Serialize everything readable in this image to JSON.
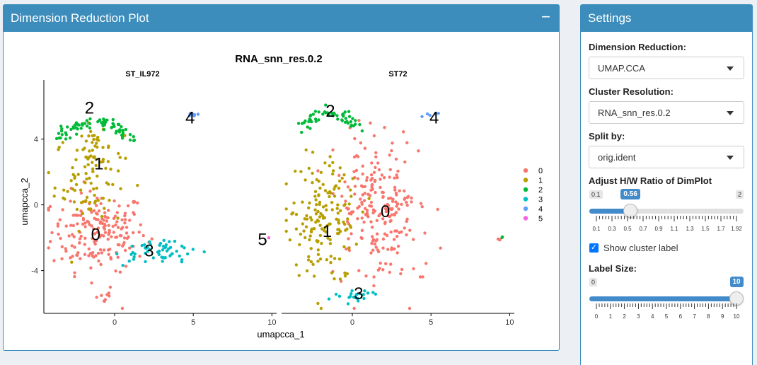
{
  "main_panel": {
    "title": "Dimension Reduction Plot",
    "collapse_icon": "minus-icon"
  },
  "settings_panel": {
    "title": "Settings",
    "dimension_reduction": {
      "label": "Dimension Reduction:",
      "value": "UMAP.CCA"
    },
    "cluster_resolution": {
      "label": "Cluster Resolution:",
      "value": "RNA_snn_res.0.2"
    },
    "split_by": {
      "label": "Split by:",
      "value": "orig.ident"
    },
    "hw_ratio": {
      "label": "Adjust H/W Ratio of DimPlot",
      "min": 0.1,
      "max": 2,
      "value": 0.56,
      "min_label": "0.1",
      "max_label": "2",
      "value_label": "0.56",
      "tick_labels": [
        "0.1",
        "0.3",
        "0.5",
        "0.7",
        "0.9",
        "1.1",
        "1.3",
        "1.5",
        "1.7",
        "1.92"
      ]
    },
    "show_cluster_label": {
      "label": "Show cluster label",
      "checked": true
    },
    "label_size": {
      "label": "Label Size:",
      "min": 0,
      "max": 10,
      "value": 10,
      "min_label": "0",
      "max_label": "10",
      "value_label": "10",
      "tick_labels": [
        "0",
        "1",
        "2",
        "3",
        "4",
        "5",
        "6",
        "7",
        "8",
        "9",
        "10"
      ]
    }
  },
  "chart_data": {
    "type": "scatter",
    "title": "RNA_snn_res.0.2",
    "xlabel": "umapcca_1",
    "ylabel": "umapcca_2",
    "xlim": [
      -4.5,
      10.3
    ],
    "ylim": [
      -6.6,
      7.6
    ],
    "x_ticks": [
      0,
      5,
      10
    ],
    "y_ticks": [
      -4,
      0,
      4
    ],
    "legend_position": "right",
    "legend": [
      {
        "label": "0",
        "color": "#F8766D"
      },
      {
        "label": "1",
        "color": "#B79F00"
      },
      {
        "label": "2",
        "color": "#00BA38"
      },
      {
        "label": "3",
        "color": "#00BFC4"
      },
      {
        "label": "4",
        "color": "#619CFF"
      },
      {
        "label": "5",
        "color": "#F564E3"
      }
    ],
    "panels": [
      {
        "name": "ST_IL972",
        "clusters": [
          {
            "cluster": "0",
            "color": "#F8766D",
            "n": 190,
            "shape": "blob",
            "cx": -1.0,
            "cy": -1.6,
            "sx": 1.5,
            "sy": 1.2
          },
          {
            "cluster": "0",
            "color": "#F8766D",
            "n": 10,
            "shape": "blob",
            "cx": -0.6,
            "cy": -5.7,
            "sx": 0.4,
            "sy": 0.3
          },
          {
            "cluster": "1",
            "color": "#B79F00",
            "n": 80,
            "shape": "blob",
            "cx": -1.6,
            "cy": 1.6,
            "sx": 1.1,
            "sy": 1.5
          },
          {
            "cluster": "1",
            "color": "#B79F00",
            "n": 25,
            "shape": "blob",
            "cx": -1.2,
            "cy": 3.5,
            "sx": 0.5,
            "sy": 0.5
          },
          {
            "cluster": "2",
            "color": "#00BA38",
            "n": 75,
            "shape": "arc",
            "cx": -1.3,
            "cy": 3.6,
            "r": 2.3,
            "sy": 1.4
          },
          {
            "cluster": "3",
            "color": "#00BFC4",
            "n": 55,
            "shape": "blob",
            "cx": 2.7,
            "cy": -2.8,
            "sx": 1.2,
            "sy": 0.35
          },
          {
            "cluster": "4",
            "color": "#619CFF",
            "n": 7,
            "shape": "blob",
            "cx": 5.0,
            "cy": 5.5,
            "sx": 0.3,
            "sy": 0.08
          },
          {
            "cluster": "5",
            "color": "#F564E3",
            "n": 1,
            "shape": "blob",
            "cx": 9.8,
            "cy": -2.0,
            "sx": 0,
            "sy": 0
          }
        ],
        "labels": [
          {
            "text": "0",
            "x": -1.2,
            "y": -1.8
          },
          {
            "text": "1",
            "x": -1.0,
            "y": 2.5
          },
          {
            "text": "2",
            "x": -1.6,
            "y": 5.9
          },
          {
            "text": "3",
            "x": 2.2,
            "y": -2.8
          },
          {
            "text": "4",
            "x": 4.8,
            "y": 5.3
          },
          {
            "text": "5",
            "x": 9.4,
            "y": -2.1
          }
        ]
      },
      {
        "name": "ST72",
        "clusters": [
          {
            "cluster": "0",
            "color": "#F8766D",
            "n": 230,
            "shape": "blob",
            "cx": 1.7,
            "cy": -0.4,
            "sx": 1.4,
            "sy": 2.0
          },
          {
            "cluster": "1",
            "color": "#B79F00",
            "n": 160,
            "shape": "blob",
            "cx": -1.8,
            "cy": -0.9,
            "sx": 1.2,
            "sy": 1.8
          },
          {
            "cluster": "2",
            "color": "#00BA38",
            "n": 55,
            "shape": "arc",
            "cx": -1.5,
            "cy": 4.4,
            "r": 1.8,
            "sy": 1.2
          },
          {
            "cluster": "3",
            "color": "#00BFC4",
            "n": 22,
            "shape": "blob",
            "cx": 0.4,
            "cy": -5.5,
            "sx": 0.6,
            "sy": 0.3
          },
          {
            "cluster": "4",
            "color": "#619CFF",
            "n": 5,
            "shape": "blob",
            "cx": 4.8,
            "cy": 5.5,
            "sx": 0.3,
            "sy": 0.08
          },
          {
            "cluster": "0",
            "color": "#F8766D",
            "n": 3,
            "shape": "blob",
            "cx": 9.3,
            "cy": -2.1,
            "sx": 0.08,
            "sy": 0.04
          },
          {
            "cluster": "2",
            "color": "#00BA38",
            "n": 2,
            "shape": "blob",
            "cx": 9.5,
            "cy": -2.0,
            "sx": 0.05,
            "sy": 0.03
          }
        ],
        "labels": [
          {
            "text": "0",
            "x": 2.1,
            "y": -0.4
          },
          {
            "text": "1",
            "x": -1.6,
            "y": -1.6
          },
          {
            "text": "2",
            "x": -1.4,
            "y": 5.7
          },
          {
            "text": "3",
            "x": 0.4,
            "y": -5.4
          },
          {
            "text": "4",
            "x": 5.2,
            "y": 5.3
          }
        ]
      }
    ]
  }
}
